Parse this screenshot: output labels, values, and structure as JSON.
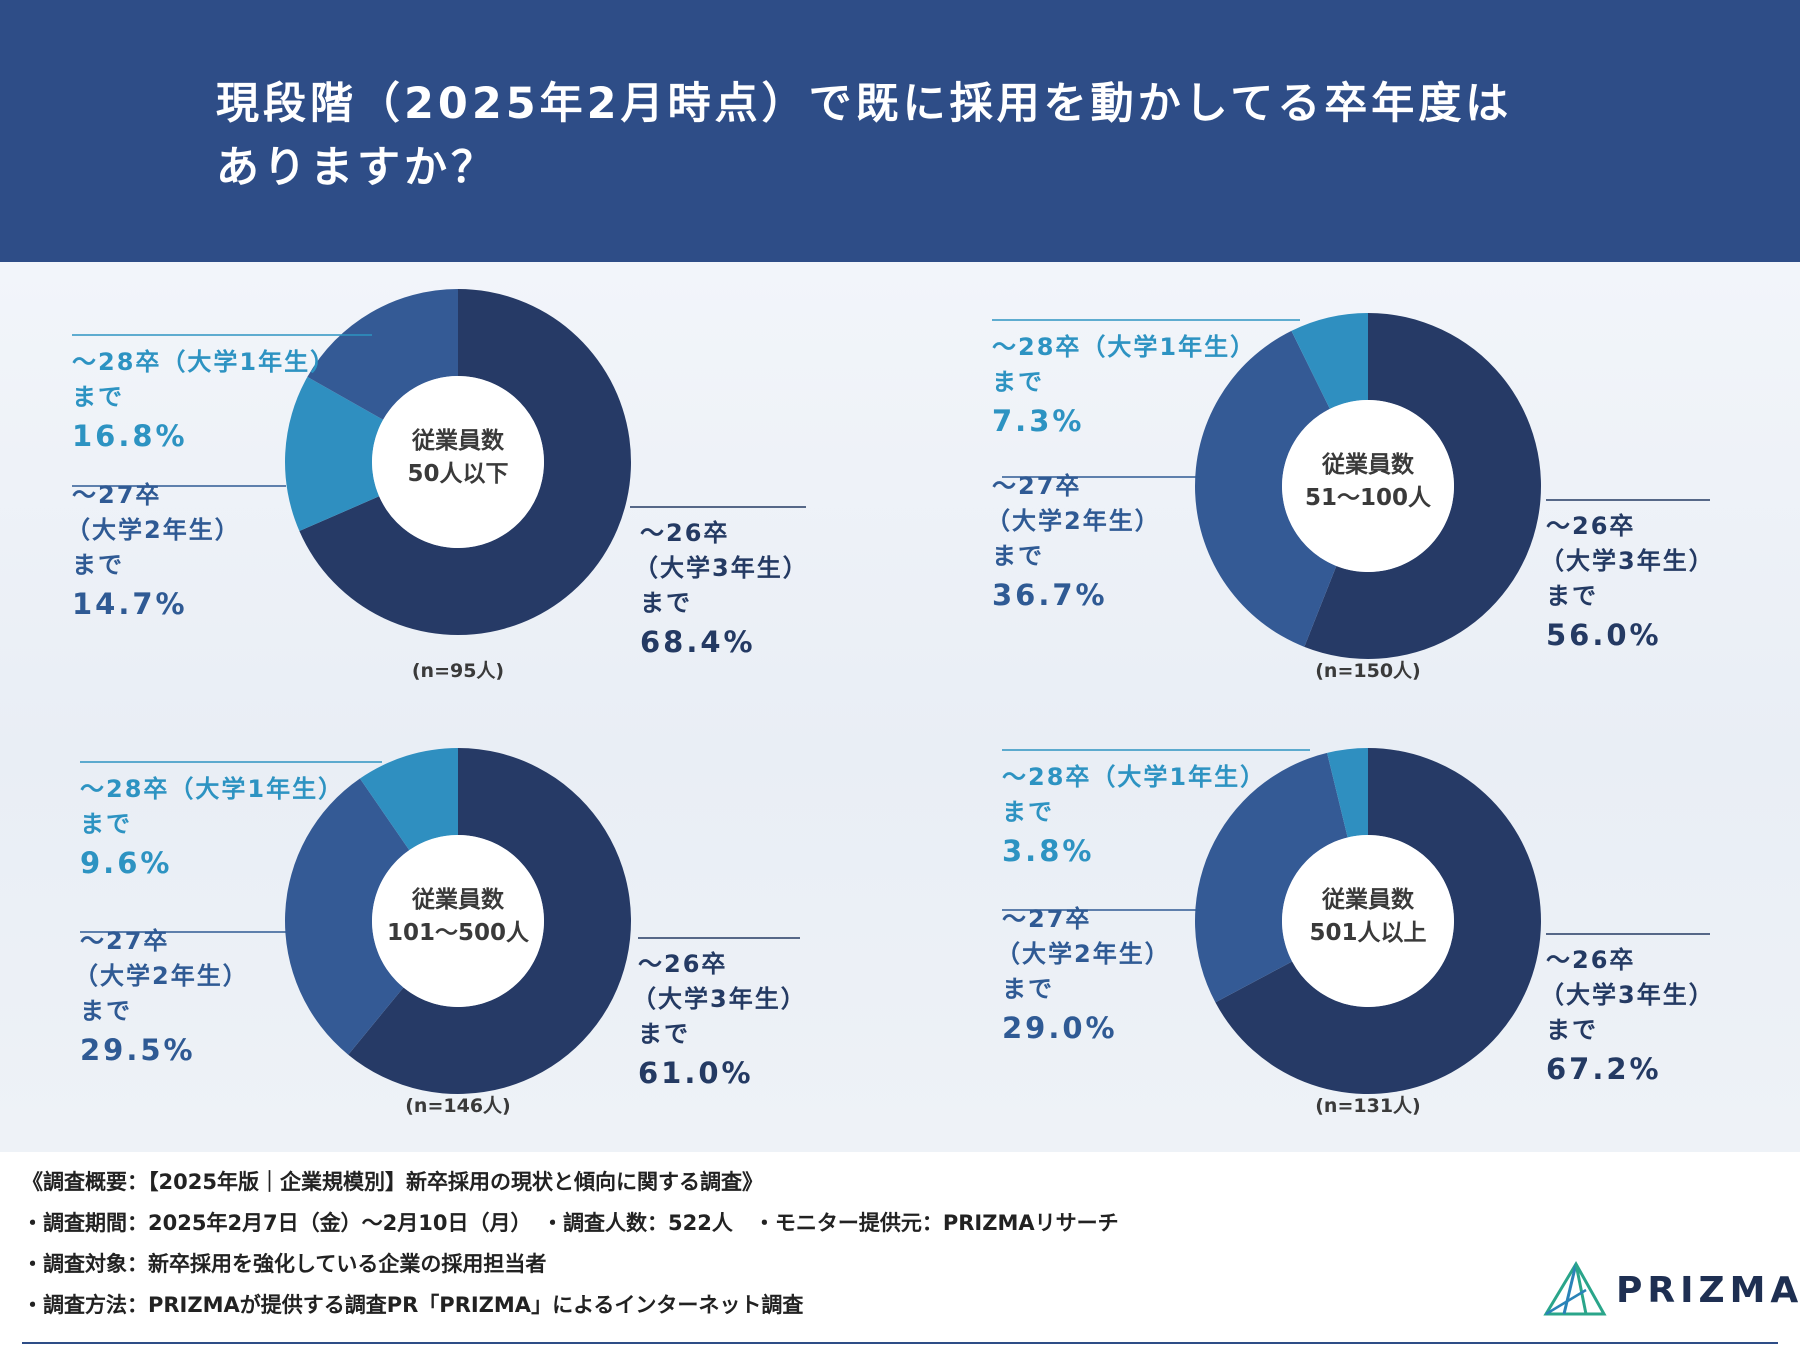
{
  "header": {
    "title_line1": "現段階（2025年2月時点）で既に採用を動かしてる卒年度は",
    "title_line2": "ありますか？"
  },
  "colors": {
    "header_bg": "#2e4d87",
    "dark_navy": "#263a66",
    "mid_blue": "#345a95",
    "light_blue": "#2f8fc0",
    "label_dark": "#243a63",
    "label_mid": "#2f5a94",
    "label_light": "#2d93c2"
  },
  "chart_data": [
    {
      "type": "pie",
      "title": "従業員数 50人以下",
      "center_label": [
        "従業員数",
        "50人以下"
      ],
      "sample": "(n=95人)",
      "series": [
        {
          "name": "〜26卒（大学3年生）まで",
          "label_lines": [
            "〜26卒",
            "（大学3年生）",
            "まで"
          ],
          "value": 68.4,
          "value_label": "68.4%",
          "color": "#263a66"
        },
        {
          "name": "〜27卒（大学2年生）まで",
          "label_lines": [
            "〜27卒",
            "（大学2年生）",
            "まで"
          ],
          "value": 14.7,
          "value_label": "14.7%",
          "color": "#2f8fc0"
        },
        {
          "name": "〜28卒（大学1年生）まで",
          "label_lines": [
            "〜28卒（大学1年生）",
            "まで"
          ],
          "value": 16.8,
          "value_label": "16.8%",
          "color": "#345a95"
        }
      ]
    },
    {
      "type": "pie",
      "title": "従業員数 51〜100人",
      "center_label": [
        "従業員数",
        "51〜100人"
      ],
      "sample": "(n=150人)",
      "series": [
        {
          "name": "〜26卒（大学3年生）まで",
          "label_lines": [
            "〜26卒",
            "（大学3年生）",
            "まで"
          ],
          "value": 56.0,
          "value_label": "56.0%",
          "color": "#263a66"
        },
        {
          "name": "〜27卒（大学2年生）まで",
          "label_lines": [
            "〜27卒",
            "（大学2年生）",
            "まで"
          ],
          "value": 36.7,
          "value_label": "36.7%",
          "color": "#345a95"
        },
        {
          "name": "〜28卒（大学1年生）まで",
          "label_lines": [
            "〜28卒（大学1年生）",
            "まで"
          ],
          "value": 7.3,
          "value_label": "7.3%",
          "color": "#2f8fc0"
        }
      ]
    },
    {
      "type": "pie",
      "title": "従業員数 101〜500人",
      "center_label": [
        "従業員数",
        "101〜500人"
      ],
      "sample": "(n=146人)",
      "series": [
        {
          "name": "〜26卒（大学3年生）まで",
          "label_lines": [
            "〜26卒",
            "（大学3年生）",
            "まで"
          ],
          "value": 61.0,
          "value_label": "61.0%",
          "color": "#263a66"
        },
        {
          "name": "〜27卒（大学2年生）まで",
          "label_lines": [
            "〜27卒",
            "（大学2年生）",
            "まで"
          ],
          "value": 29.5,
          "value_label": "29.5%",
          "color": "#345a95"
        },
        {
          "name": "〜28卒（大学1年生）まで",
          "label_lines": [
            "〜28卒（大学1年生）",
            "まで"
          ],
          "value": 9.6,
          "value_label": "9.6%",
          "color": "#2f8fc0"
        }
      ]
    },
    {
      "type": "pie",
      "title": "従業員数 501人以上",
      "center_label": [
        "従業員数",
        "501人以上"
      ],
      "sample": "(n=131人)",
      "series": [
        {
          "name": "〜26卒（大学3年生）まで",
          "label_lines": [
            "〜26卒",
            "（大学3年生）",
            "まで"
          ],
          "value": 67.2,
          "value_label": "67.2%",
          "color": "#263a66"
        },
        {
          "name": "〜27卒（大学2年生）まで",
          "label_lines": [
            "〜27卒",
            "（大学2年生）",
            "まで"
          ],
          "value": 29.0,
          "value_label": "29.0%",
          "color": "#345a95"
        },
        {
          "name": "〜28卒（大学1年生）まで",
          "label_lines": [
            "〜28卒（大学1年生）",
            "まで"
          ],
          "value": 3.8,
          "value_label": "3.8%",
          "color": "#2f8fc0"
        }
      ]
    }
  ],
  "footer": {
    "line1": "《調査概要：【2025年版｜企業規模別】新卒採用の現状と傾向に関する調査》",
    "line2": "・調査期間：2025年2月7日（金）〜2月10日（月）　・調査人数：522人　・モニター提供元：PRIZMAリサーチ",
    "line3": "・調査対象：新卒採用を強化している企業の採用担当者",
    "line4": "・調査方法：PRIZMAが提供する調査PR「PRIZMA」によるインターネット調査"
  },
  "logo": {
    "text": "PRIZMA"
  }
}
